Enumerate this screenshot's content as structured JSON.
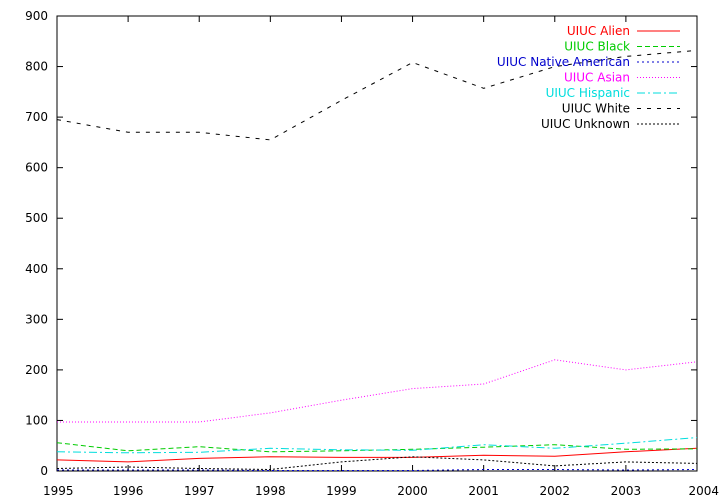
{
  "chart_data": {
    "type": "line",
    "title": "",
    "xlabel": "",
    "ylabel": "",
    "x": [
      1995,
      1996,
      1997,
      1998,
      1999,
      2000,
      2001,
      2002,
      2003,
      2004
    ],
    "xlim": [
      1995,
      2004
    ],
    "ylim": [
      0,
      900
    ],
    "x_ticks": [
      "1995",
      "1996",
      "1997",
      "1998",
      "1999",
      "2000",
      "2001",
      "2002",
      "2003",
      "2004"
    ],
    "y_ticks": [
      "0",
      "100",
      "200",
      "300",
      "400",
      "500",
      "600",
      "700",
      "800",
      "900"
    ],
    "grid": false,
    "legend_position": "top-right",
    "series": [
      {
        "name": "UIUC Alien",
        "color": "#ff0000",
        "dash": "solid",
        "values": [
          22,
          18,
          25,
          28,
          27,
          27,
          31,
          29,
          38,
          45
        ]
      },
      {
        "name": "UIUC Black",
        "color": "#00cc00",
        "dash": "dashed",
        "values": [
          56,
          40,
          48,
          38,
          40,
          43,
          47,
          52,
          43,
          44
        ]
      },
      {
        "name": "UIUC Native American",
        "color": "#0000cc",
        "dash": "dotted",
        "values": [
          2,
          2,
          2,
          1,
          1,
          1,
          3,
          3,
          2,
          3
        ]
      },
      {
        "name": "UIUC Asian",
        "color": "#ff00ff",
        "dash": "fine-dotted",
        "values": [
          97,
          97,
          97,
          115,
          140,
          163,
          172,
          220,
          200,
          216
        ]
      },
      {
        "name": "UIUC Hispanic",
        "color": "#00dddd",
        "dash": "dash-dot",
        "values": [
          38,
          36,
          37,
          45,
          42,
          41,
          52,
          45,
          55,
          66
        ]
      },
      {
        "name": "UIUC White",
        "color": "#000000",
        "dash": "long-dashed",
        "values": [
          695,
          670,
          670,
          655,
          733,
          808,
          757,
          800,
          820,
          832
        ]
      },
      {
        "name": "UIUC Unknown",
        "color": "#000000",
        "dash": "dense-dotted",
        "values": [
          5,
          8,
          5,
          3,
          18,
          28,
          22,
          10,
          18,
          15
        ]
      }
    ]
  }
}
